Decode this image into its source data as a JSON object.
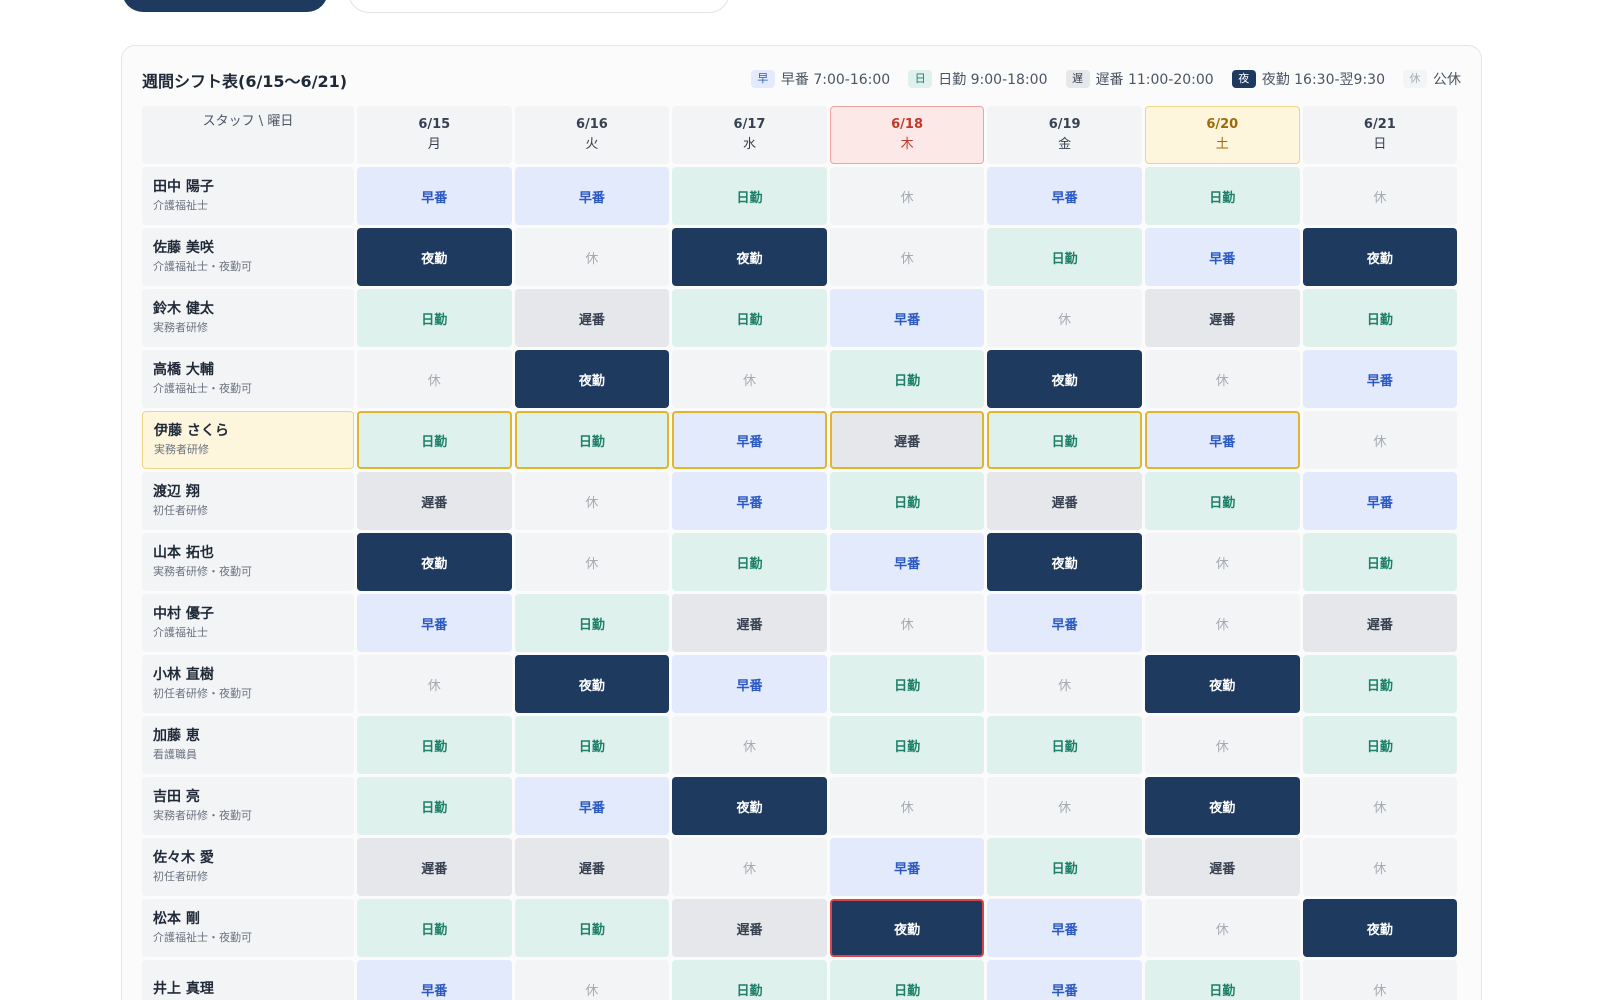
{
  "card": {
    "title": "週間シフト表(6/15〜6/21)"
  },
  "legend": [
    {
      "badge": "早",
      "text": "早番 7:00-16:00",
      "kind": "early"
    },
    {
      "badge": "日",
      "text": "日勤 9:00-18:00",
      "kind": "day"
    },
    {
      "badge": "遅",
      "text": "遅番 11:00-20:00",
      "kind": "late"
    },
    {
      "badge": "夜",
      "text": "夜勤 16:30-翌9:30",
      "kind": "night"
    },
    {
      "badge": "休",
      "text": "公休",
      "kind": "off"
    }
  ],
  "header": {
    "corner": "スタッフ \\ 曜日",
    "days": [
      {
        "date": "6/15",
        "weekday": "月",
        "kind": "normal"
      },
      {
        "date": "6/16",
        "weekday": "火",
        "kind": "normal"
      },
      {
        "date": "6/17",
        "weekday": "水",
        "kind": "normal"
      },
      {
        "date": "6/18",
        "weekday": "木",
        "kind": "holiday"
      },
      {
        "date": "6/19",
        "weekday": "金",
        "kind": "normal"
      },
      {
        "date": "6/20",
        "weekday": "土",
        "kind": "saturday"
      },
      {
        "date": "6/21",
        "weekday": "日",
        "kind": "normal"
      }
    ]
  },
  "shift_labels": {
    "early": "早番",
    "day": "日勤",
    "late": "遅番",
    "night": "夜勤",
    "off": "休"
  },
  "staff": [
    {
      "name": "田中 陽子",
      "qual": "介護福祉士",
      "shifts": [
        "early",
        "early",
        "day",
        "off",
        "early",
        "day",
        "off"
      ]
    },
    {
      "name": "佐藤 美咲",
      "qual": "介護福祉士・夜勤可",
      "shifts": [
        "night",
        "off",
        "night",
        "off",
        "day",
        "early",
        "night"
      ]
    },
    {
      "name": "鈴木 健太",
      "qual": "実務者研修",
      "shifts": [
        "day",
        "late",
        "day",
        "early",
        "off",
        "late",
        "day"
      ]
    },
    {
      "name": "高橋 大輔",
      "qual": "介護福祉士・夜勤可",
      "shifts": [
        "off",
        "night",
        "off",
        "day",
        "night",
        "off",
        "early"
      ]
    },
    {
      "name": "伊藤 さくら",
      "qual": "実務者研修",
      "shifts": [
        "day",
        "day",
        "early",
        "late",
        "day",
        "early",
        "off"
      ],
      "selected": true
    },
    {
      "name": "渡辺 翔",
      "qual": "初任者研修",
      "shifts": [
        "late",
        "off",
        "early",
        "day",
        "late",
        "day",
        "early"
      ]
    },
    {
      "name": "山本 拓也",
      "qual": "実務者研修・夜勤可",
      "shifts": [
        "night",
        "off",
        "day",
        "early",
        "night",
        "off",
        "day"
      ]
    },
    {
      "name": "中村 優子",
      "qual": "介護福祉士",
      "shifts": [
        "early",
        "day",
        "late",
        "off",
        "early",
        "off",
        "late"
      ]
    },
    {
      "name": "小林 直樹",
      "qual": "初任者研修・夜勤可",
      "shifts": [
        "off",
        "night",
        "early",
        "day",
        "off",
        "night",
        "day"
      ]
    },
    {
      "name": "加藤 恵",
      "qual": "看護職員",
      "shifts": [
        "day",
        "day",
        "off",
        "day",
        "day",
        "off",
        "day"
      ]
    },
    {
      "name": "吉田 亮",
      "qual": "実務者研修・夜勤可",
      "shifts": [
        "day",
        "early",
        "night",
        "off",
        "off",
        "night",
        "off"
      ]
    },
    {
      "name": "佐々木 愛",
      "qual": "初任者研修",
      "shifts": [
        "late",
        "late",
        "off",
        "early",
        "day",
        "late",
        "off"
      ]
    },
    {
      "name": "松本 剛",
      "qual": "介護福祉士・夜勤可",
      "shifts": [
        "day",
        "day",
        "late",
        "night",
        "early",
        "off",
        "night"
      ],
      "error_day": 3
    },
    {
      "name": "井上 真理",
      "qual": "",
      "shifts": [
        "early",
        "off",
        "day",
        "day",
        "early",
        "day",
        "off"
      ]
    }
  ],
  "colors": {
    "primary": "#1f3a5f",
    "early_bg": "#e3eafc",
    "day_bg": "#dff1ec",
    "late_bg": "#e6e7ea",
    "selected_border": "#e2b52a",
    "error_border": "#d9434b"
  }
}
